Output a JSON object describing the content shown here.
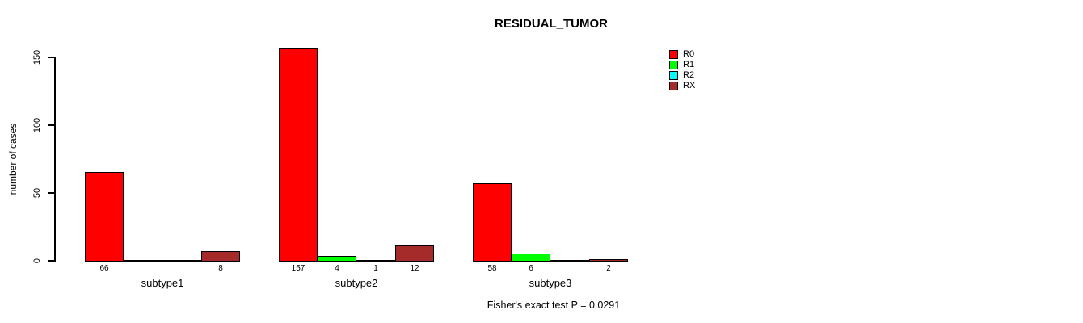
{
  "chart_data": {
    "type": "bar",
    "grouped": true,
    "title": "RESIDUAL_TUMOR",
    "xlabel": "",
    "ylabel": "number of cases",
    "annotation": "Fisher's exact test P = 0.0291",
    "categories": [
      "subtype1",
      "subtype2",
      "subtype3"
    ],
    "series": [
      {
        "name": "R0",
        "color": "#FF0000",
        "values": [
          66,
          157,
          58
        ]
      },
      {
        "name": "R1",
        "color": "#00FF00",
        "values": [
          0,
          4,
          6
        ]
      },
      {
        "name": "R2",
        "color": "#00FFFF",
        "values": [
          0,
          1,
          0
        ]
      },
      {
        "name": "RX",
        "color": "#A52A2A",
        "values": [
          8,
          12,
          2
        ]
      }
    ],
    "yticks": [
      0,
      50,
      100,
      150
    ],
    "ylim": [
      0,
      160
    ],
    "grid": false,
    "legend_position": "top-right",
    "bar_value_labels": true,
    "hide_zero_value_labels": true,
    "background": "#FFFFFF",
    "bar_border_color": "#000000"
  }
}
